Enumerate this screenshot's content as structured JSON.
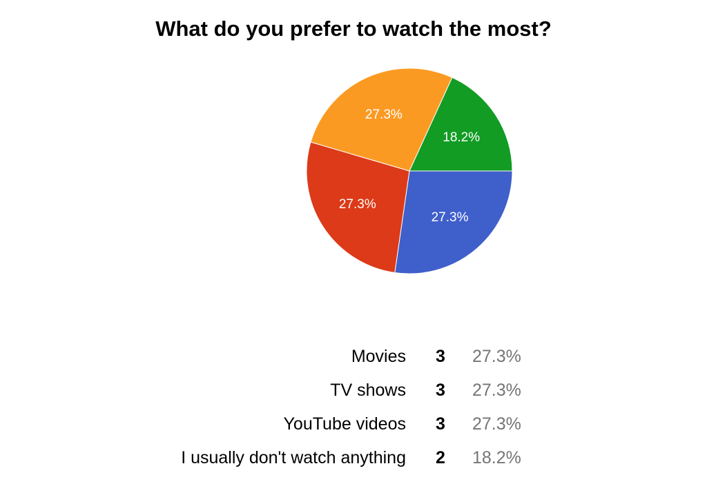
{
  "chart_data": {
    "type": "pie",
    "title": "What do you prefer to watch the most?",
    "start_angle_deg": 90,
    "direction": "clockwise",
    "slices": [
      {
        "label": "Movies",
        "count": 3,
        "percent": "27.3%",
        "value": 27.3,
        "color": "#3f5fcb"
      },
      {
        "label": "TV shows",
        "count": 3,
        "percent": "27.3%",
        "value": 27.3,
        "color": "#dc3a18"
      },
      {
        "label": "YouTube videos",
        "count": 3,
        "percent": "27.3%",
        "value": 27.3,
        "color": "#fb9a23"
      },
      {
        "label": "I usually don't watch anything",
        "count": 2,
        "percent": "18.2%",
        "value": 18.2,
        "color": "#129c24"
      }
    ],
    "legend": "none"
  }
}
